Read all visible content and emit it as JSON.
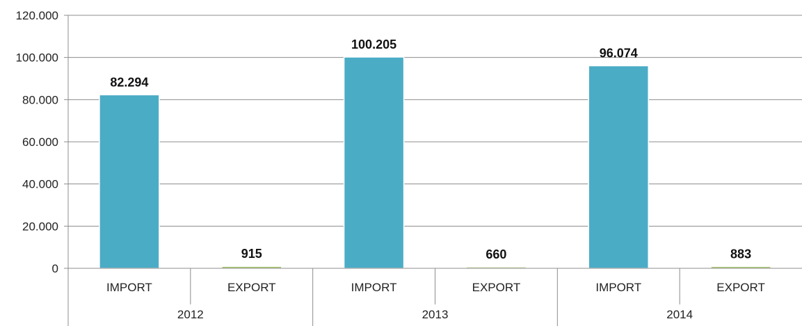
{
  "chart_data": {
    "type": "bar",
    "groups": [
      {
        "label": "2012",
        "items": [
          {
            "category": "IMPORT",
            "value": 82294,
            "display": "82.294"
          },
          {
            "category": "EXPORT",
            "value": 915,
            "display": "915"
          }
        ]
      },
      {
        "label": "2013",
        "items": [
          {
            "category": "IMPORT",
            "value": 100205,
            "display": "100.205"
          },
          {
            "category": "EXPORT",
            "value": 660,
            "display": "660"
          }
        ]
      },
      {
        "label": "2014",
        "items": [
          {
            "category": "IMPORT",
            "value": 96074,
            "display": "96.074"
          },
          {
            "category": "EXPORT",
            "value": 883,
            "display": "883"
          }
        ]
      }
    ],
    "yticks": [
      {
        "value": 0,
        "label": "0"
      },
      {
        "value": 20000,
        "label": "20.000"
      },
      {
        "value": 40000,
        "label": "40.000"
      },
      {
        "value": 60000,
        "label": "60.000"
      },
      {
        "value": 80000,
        "label": "80.000"
      },
      {
        "value": 100000,
        "label": "100.000"
      },
      {
        "value": 120000,
        "label": "120.000"
      }
    ],
    "ylim": [
      0,
      120000
    ],
    "grid": true,
    "colors": {
      "IMPORT": "#4bacc6",
      "EXPORT": "#9bbb59"
    }
  }
}
